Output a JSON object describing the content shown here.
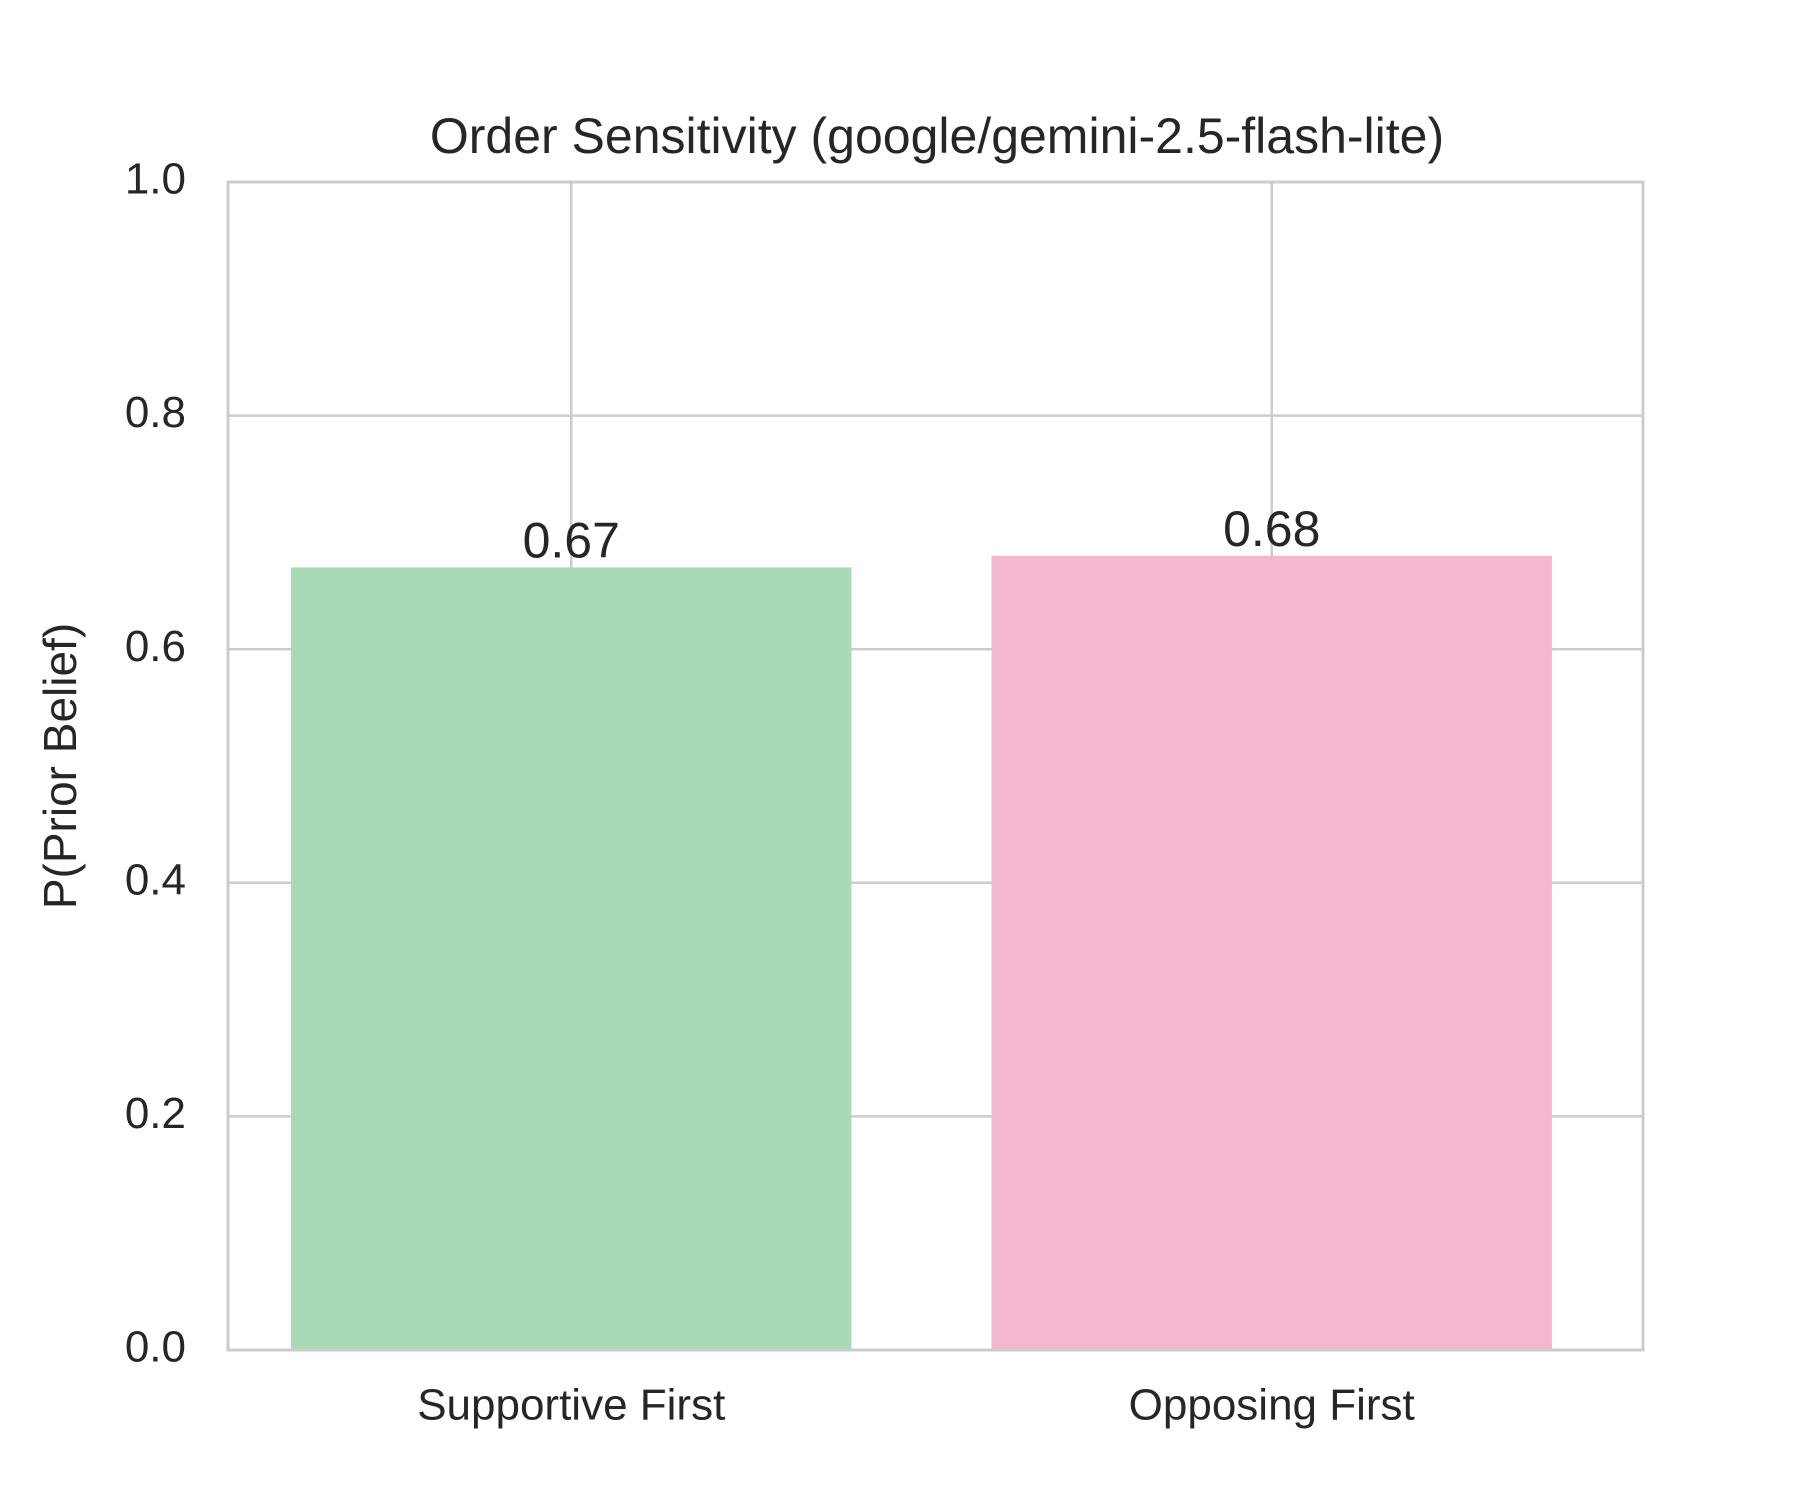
{
  "chart_data": {
    "type": "bar",
    "title": "Order Sensitivity (google/gemini-2.5-flash-lite)",
    "ylabel": "P(Prior Belief)",
    "categories": [
      "Supportive First",
      "Opposing First"
    ],
    "values": [
      0.67,
      0.68
    ],
    "colors": [
      "#a8dab5",
      "#f5b6d0"
    ],
    "ylim": [
      0,
      1
    ],
    "yticks": [
      {
        "value": 0,
        "label": "0.0"
      },
      0.2,
      0.4,
      0.6,
      0.8,
      {
        "value": 1,
        "label": "1.0"
      }
    ],
    "grid": true
  }
}
